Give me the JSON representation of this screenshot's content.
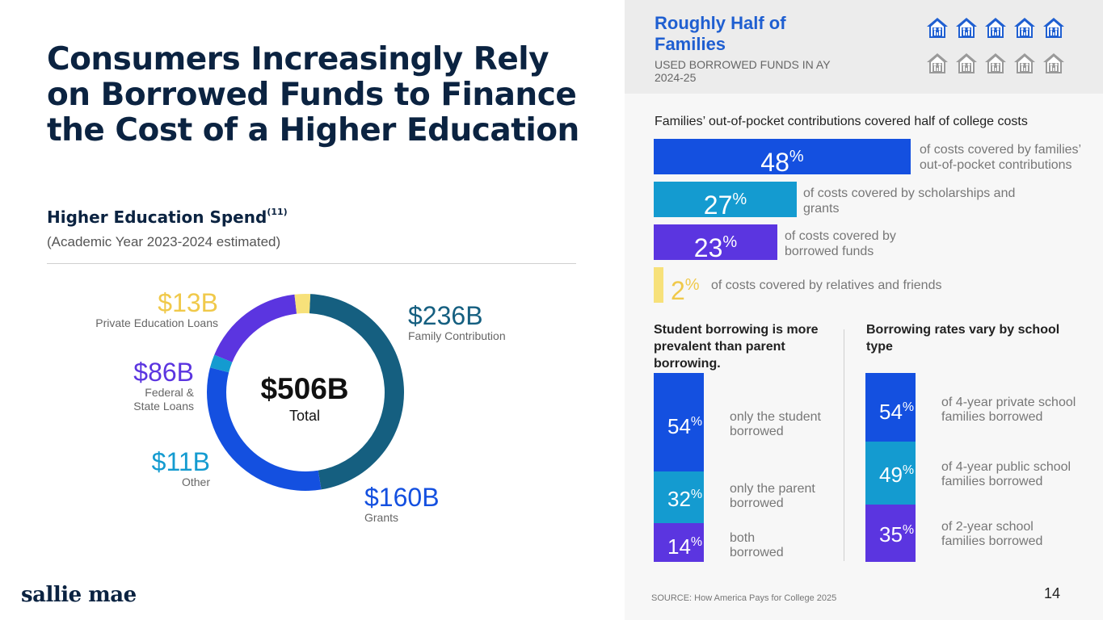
{
  "title": "Consumers Increasingly Rely on Borrowed Funds to Finance the Cost of a Higher Education",
  "spend": {
    "heading": "Higher Education Spend",
    "footnote": "(11)",
    "note": "(Academic Year 2023-2024 estimated)",
    "total_value": "$506B",
    "total_label": "Total"
  },
  "colors": {
    "family": "#155f80",
    "grants": "#1450e0",
    "other": "#149bd0",
    "federal": "#5b35e0",
    "private": "#f7e17a",
    "navy": "#0b2341",
    "house_blue": "#1f5fd1",
    "house_gray": "#9a9a9a"
  },
  "chart_data": [
    {
      "type": "pie",
      "categories": [
        "Family Contribution",
        "Grants",
        "Other",
        "Federal & State Loans",
        "Private Education Loans"
      ],
      "values": [
        236,
        160,
        11,
        86,
        13
      ],
      "value_labels": [
        "$236B",
        "$160B",
        "$11B",
        "$86B",
        "$13B"
      ],
      "colors": [
        "#155f80",
        "#1450e0",
        "#149bd0",
        "#5b35e0",
        "#f7e17a"
      ],
      "center_value": "$506B",
      "center_label": "Total"
    },
    {
      "type": "bar",
      "title": "Families’ out-of-pocket contributions covered half of college costs",
      "categories": [
        "of costs covered by families’ out-of-pocket contributions",
        "of costs covered by scholarships and grants",
        "of costs covered by borrowed funds",
        "of costs covered by relatives and friends"
      ],
      "values": [
        48,
        27,
        23,
        2
      ],
      "colors": [
        "#1450e0",
        "#149bd0",
        "#5b35e0",
        "#f7e17a"
      ],
      "unit": "%"
    },
    {
      "type": "bar",
      "title": "Student borrowing is more prevalent than parent borrowing.",
      "categories": [
        "only the student borrowed",
        "only the parent borrowed",
        "both borrowed"
      ],
      "values": [
        54,
        32,
        14
      ],
      "colors": [
        "#1450e0",
        "#149bd0",
        "#5b35e0"
      ],
      "unit": "%"
    },
    {
      "type": "bar",
      "title": "Borrowing rates vary by school type",
      "categories": [
        "of 4-year private school families borrowed",
        "of 4-year public school families borrowed",
        "of 2-year school families borrowed"
      ],
      "values": [
        54,
        49,
        35
      ],
      "colors": [
        "#1450e0",
        "#149bd0",
        "#5b35e0"
      ],
      "unit": "%"
    }
  ],
  "highlight": {
    "title": "Roughly Half of Families",
    "subtitle": "USED BORROWED FUNDS IN AY 2024-25",
    "icons_highlighted": 5,
    "icons_total": 10,
    "icon": "house-family-icon"
  },
  "source": "SOURCE: How America Pays for College 2025",
  "page_number": "14",
  "logo_text": "sallie mae"
}
